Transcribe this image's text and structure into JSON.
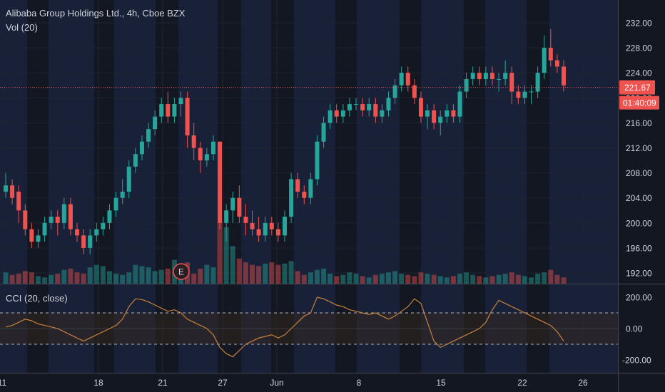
{
  "legend": {
    "symbol": "Alibaba Group Holdings Ltd., 4h, Cboe BZX",
    "volume": "Vol (20)",
    "cci": "CCI (20, close)"
  },
  "price_axis": {
    "ticks": [
      "232.00",
      "228.00",
      "224.00",
      "220.00",
      "216.00",
      "212.00",
      "208.00",
      "204.00",
      "200.00",
      "196.00",
      "192.00"
    ],
    "values": [
      232,
      228,
      224,
      220,
      216,
      212,
      208,
      204,
      200,
      196,
      192
    ]
  },
  "cci_axis": {
    "ticks": [
      "200.00",
      "0.00",
      "-200.00"
    ],
    "values": [
      200,
      0,
      -200
    ]
  },
  "time_axis": {
    "ticks": [
      "11",
      "18",
      "21",
      "27",
      "Jun",
      "8",
      "15",
      "22",
      "26"
    ]
  },
  "last_price": {
    "value": 221.67,
    "label": "221.67",
    "countdown": "01:40:09"
  },
  "event_marker": {
    "label": "E"
  },
  "colors": {
    "up": "#26a69a",
    "down": "#ef5350",
    "background": "#131722",
    "session_band": "#1e2a48",
    "cci_line": "#c5803d",
    "text": "#d1d4dc"
  },
  "chart_data": [
    {
      "type": "candlestick",
      "series": [
        {
          "name": "Alibaba Group Holdings Ltd.",
          "ohlc": [
            [
              205,
              208,
              204,
              206
            ],
            [
              206,
              207,
              203,
              204
            ],
            [
              205,
              206,
              200,
              202
            ],
            [
              202,
              203,
              198,
              199
            ],
            [
              199,
              200,
              196,
              197
            ],
            [
              197,
              199,
              196,
              198
            ],
            [
              198,
              201,
              197,
              200
            ],
            [
              200,
              202,
              199,
              201
            ],
            [
              201,
              202,
              198,
              200
            ],
            [
              200,
              204,
              199,
              203
            ],
            [
              203,
              204,
              198,
              199
            ],
            [
              199,
              200,
              197,
              198
            ],
            [
              198,
              199,
              195,
              196
            ],
            [
              196,
              199,
              195,
              198
            ],
            [
              198,
              200,
              197,
              199
            ],
            [
              199,
              201,
              198,
              200
            ],
            [
              200,
              203,
              199,
              202
            ],
            [
              202,
              205,
              201,
              204
            ],
            [
              204,
              207,
              203,
              205
            ],
            [
              205,
              210,
              204,
              209
            ],
            [
              209,
              212,
              208,
              211
            ],
            [
              211,
              214,
              210,
              213
            ],
            [
              213,
              216,
              212,
              215
            ],
            [
              215,
              218,
              214,
              217
            ],
            [
              217,
              220,
              216,
              219
            ],
            [
              219,
              221,
              216,
              217
            ],
            [
              217,
              220,
              216,
              219
            ],
            [
              219,
              221,
              217,
              220
            ],
            [
              220,
              221,
              212,
              214
            ],
            [
              214,
              216,
              210,
              212
            ],
            [
              212,
              213,
              208,
              210
            ],
            [
              210,
              212,
              209,
              211
            ],
            [
              211,
              214,
              210,
              213
            ],
            [
              213,
              213,
              199,
              200
            ],
            [
              200,
              203,
              197,
              202
            ],
            [
              202,
              205,
              200,
              204
            ],
            [
              204,
              206,
              200,
              201
            ],
            [
              201,
              203,
              198,
              200
            ],
            [
              200,
              202,
              198,
              199
            ],
            [
              199,
              201,
              197,
              198
            ],
            [
              198,
              201,
              197,
              200
            ],
            [
              200,
              201,
              198,
              199
            ],
            [
              199,
              200,
              197,
              198
            ],
            [
              198,
              202,
              197,
              201
            ],
            [
              201,
              208,
              200,
              207
            ],
            [
              207,
              208,
              204,
              205
            ],
            [
              205,
              206,
              203,
              204
            ],
            [
              204,
              208,
              203,
              207
            ],
            [
              207,
              214,
              206,
              213
            ],
            [
              213,
              217,
              212,
              216
            ],
            [
              216,
              219,
              215,
              218
            ],
            [
              218,
              219,
              216,
              217
            ],
            [
              217,
              219,
              216,
              218
            ],
            [
              218,
              220,
              217,
              219
            ],
            [
              219,
              220,
              218,
              219
            ],
            [
              219,
              220,
              217,
              218
            ],
            [
              218,
              220,
              217,
              219
            ],
            [
              219,
              220,
              216,
              217
            ],
            [
              217,
              219,
              216,
              218
            ],
            [
              218,
              221,
              217,
              220
            ],
            [
              220,
              223,
              219,
              222
            ],
            [
              222,
              225,
              221,
              224
            ],
            [
              224,
              225,
              221,
              222
            ],
            [
              222,
              223,
              219,
              220
            ],
            [
              220,
              221,
              216,
              217
            ],
            [
              217,
              219,
              215,
              218
            ],
            [
              218,
              219,
              215,
              216
            ],
            [
              216,
              218,
              214,
              217
            ],
            [
              217,
              219,
              216,
              218
            ],
            [
              218,
              219,
              216,
              217
            ],
            [
              217,
              222,
              216,
              221
            ],
            [
              221,
              224,
              220,
              223
            ],
            [
              223,
              225,
              222,
              224
            ],
            [
              224,
              225,
              222,
              223
            ],
            [
              223,
              225,
              222,
              224
            ],
            [
              224,
              225,
              222,
              223
            ],
            [
              223,
              224,
              221,
              223
            ],
            [
              223,
              226,
              222,
              224
            ],
            [
              224,
              225,
              219,
              221
            ],
            [
              221,
              222,
              219,
              220
            ],
            [
              220,
              222,
              219,
              221
            ],
            [
              221,
              222,
              219,
              221
            ],
            [
              221,
              225,
              220,
              224
            ],
            [
              224,
              230,
              223,
              228
            ],
            [
              228,
              231,
              225,
              226
            ],
            [
              226,
              227,
              224,
              225
            ],
            [
              225,
              226,
              221,
              222
            ]
          ]
        }
      ]
    },
    {
      "type": "bar",
      "series": [
        {
          "name": "Vol (20)",
          "values": [
            18,
            14,
            16,
            20,
            18,
            12,
            10,
            14,
            16,
            22,
            24,
            18,
            16,
            26,
            30,
            28,
            20,
            16,
            14,
            18,
            30,
            28,
            26,
            20,
            22,
            24,
            38,
            30,
            34,
            16,
            24,
            30,
            26,
            100,
            90,
            60,
            40,
            34,
            30,
            28,
            32,
            34,
            30,
            32,
            36,
            20,
            14,
            18,
            22,
            24,
            16,
            12,
            14,
            18,
            16,
            12,
            10,
            14,
            16,
            18,
            20,
            16,
            14,
            12,
            18,
            16,
            14,
            12,
            10,
            12,
            16,
            18,
            14,
            12,
            10,
            12,
            14,
            16,
            18,
            14,
            12,
            10,
            16,
            18,
            22,
            14,
            10
          ]
        }
      ]
    },
    {
      "type": "line",
      "series": [
        {
          "name": "CCI (20, close)",
          "values": [
            10,
            20,
            40,
            60,
            50,
            30,
            20,
            10,
            0,
            -20,
            -40,
            -60,
            -80,
            -60,
            -40,
            -20,
            0,
            20,
            60,
            140,
            190,
            185,
            170,
            150,
            130,
            110,
            120,
            100,
            60,
            40,
            20,
            0,
            -40,
            -120,
            -160,
            -180,
            -140,
            -100,
            -80,
            -60,
            -50,
            -40,
            -60,
            -40,
            0,
            40,
            80,
            100,
            200,
            190,
            170,
            150,
            140,
            120,
            110,
            100,
            90,
            100,
            80,
            60,
            80,
            110,
            140,
            190,
            160,
            40,
            -80,
            -120,
            -100,
            -80,
            -60,
            -40,
            -20,
            0,
            40,
            120,
            180,
            160,
            140,
            120,
            100,
            80,
            60,
            40,
            20,
            -20,
            -80
          ]
        }
      ]
    }
  ]
}
